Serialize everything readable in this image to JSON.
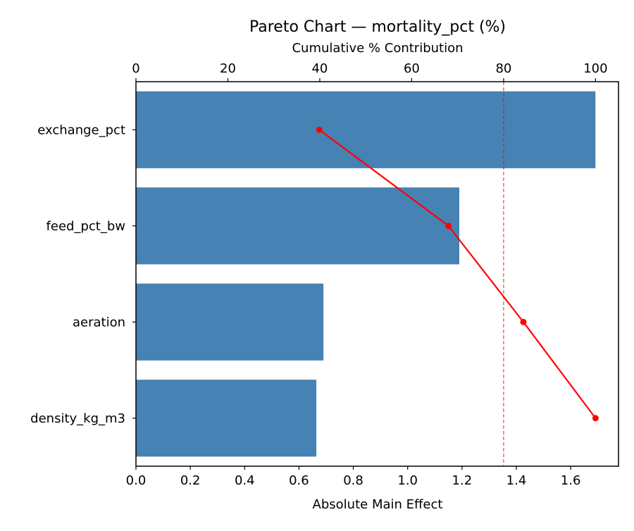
{
  "chart_data": {
    "type": "bar",
    "orientation": "horizontal",
    "title": "Pareto Chart — mortality_pct (%)",
    "xlabel": "Absolute Main Effect",
    "x2label": "Cumulative % Contribution",
    "categories": [
      "exchange_pct",
      "feed_pct_bw",
      "aeration",
      "density_kg_m3"
    ],
    "values": [
      1.691,
      1.19,
      0.69,
      0.664
    ],
    "cumulative_pct": [
      39.9,
      68.0,
      84.3,
      100.0
    ],
    "threshold_pct": 80,
    "xlim": [
      0,
      1.776
    ],
    "x2lim": [
      0,
      105
    ],
    "xticks": [
      "0.0",
      "0.2",
      "0.4",
      "0.6",
      "0.8",
      "1.0",
      "1.2",
      "1.4",
      "1.6"
    ],
    "x2ticks": [
      "0",
      "20",
      "40",
      "60",
      "80",
      "100"
    ],
    "grid": false,
    "colors": {
      "bar": "#4682b4",
      "line": "#ff0000",
      "threshold": "#ff0000"
    }
  }
}
